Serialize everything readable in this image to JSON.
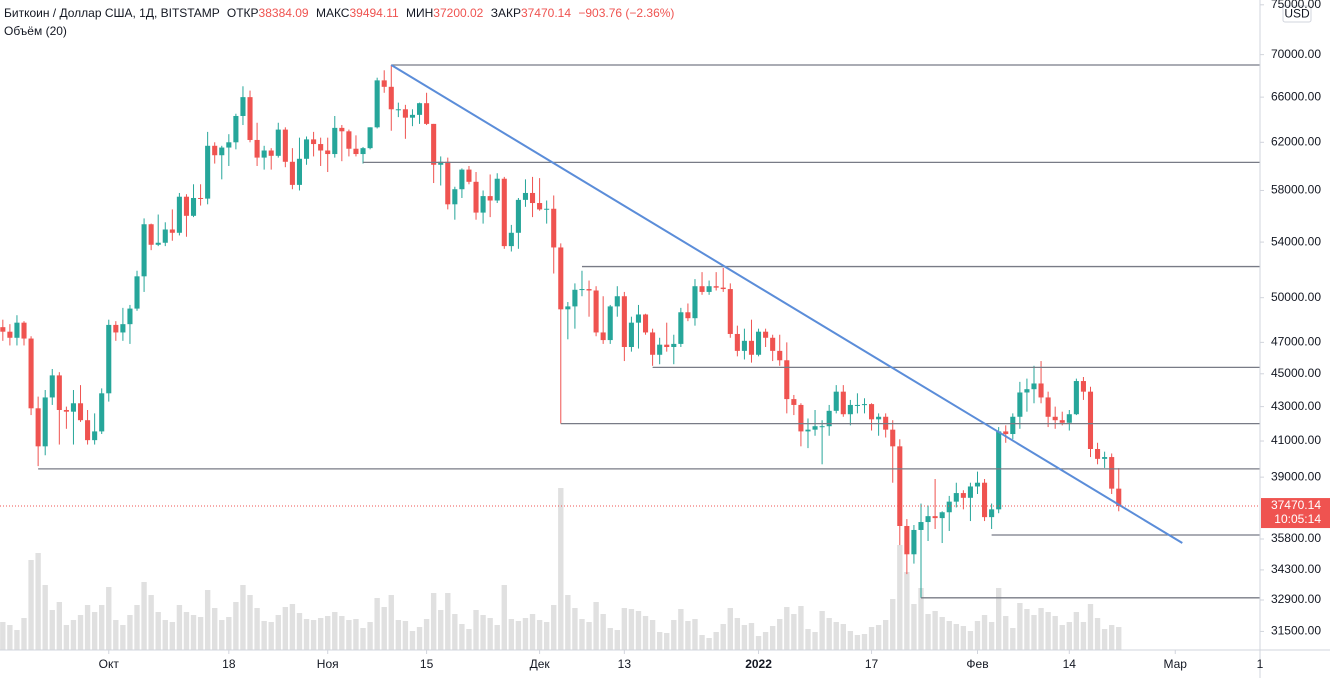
{
  "chart_data": {
    "type": "candlestick",
    "title": "Биткоин / Доллар США, 1Д, BITSTAMP",
    "ohlc_labels": [
      "ОТКР",
      "МАКС",
      "МИН",
      "ЗАКР"
    ],
    "change": "−903.76 (−2.36%)",
    "volume_label": "Объём (20)",
    "currency": "USD",
    "countdown": "10:05:14",
    "log_scale": true,
    "up_color": "#26a69a",
    "down_color": "#ef5350",
    "volume_color": "#e0e0e0",
    "drawing_color": "#787b86",
    "trend_color": "#5b8dd9",
    "xlim": [
      -0.4,
      178
    ],
    "ylim": [
      30700,
      75500
    ],
    "xticks": [
      {
        "value": 15,
        "label": "Окт"
      },
      {
        "value": 32,
        "label": "18"
      },
      {
        "value": 46,
        "label": "Ноя"
      },
      {
        "value": 60,
        "label": "15"
      },
      {
        "value": 76,
        "label": "Дек"
      },
      {
        "value": 88,
        "label": "13"
      },
      {
        "value": 107,
        "label": "2022"
      },
      {
        "value": 123,
        "label": "17"
      },
      {
        "value": 138,
        "label": "Фев"
      },
      {
        "value": 151,
        "label": "14"
      },
      {
        "value": 166,
        "label": "Мар"
      },
      {
        "value": 178,
        "label": "1"
      }
    ],
    "yticks": [
      {
        "value": 75000,
        "label": "75000.00"
      },
      {
        "value": 70000,
        "label": "70000.00"
      },
      {
        "value": 66000,
        "label": "66000.00"
      },
      {
        "value": 62000,
        "label": "62000.00"
      },
      {
        "value": 58000,
        "label": "58000.00"
      },
      {
        "value": 54000,
        "label": "54000.00"
      },
      {
        "value": 50000,
        "label": "50000.00"
      },
      {
        "value": 47000,
        "label": "47000.00"
      },
      {
        "value": 45000,
        "label": "45000.00"
      },
      {
        "value": 43000,
        "label": "43000.00"
      },
      {
        "value": 41000,
        "label": "41000.00"
      },
      {
        "value": 39000,
        "label": "39000.00"
      },
      {
        "value": 35800,
        "label": "35800.00"
      },
      {
        "value": 34300,
        "label": "34300.00"
      },
      {
        "value": 32900,
        "label": "32900.00"
      },
      {
        "value": 31500,
        "label": "31500.00"
      }
    ],
    "trendline": [
      {
        "index": 55,
        "price": 69000
      },
      {
        "index": 167,
        "price": 35600
      }
    ],
    "levels": [
      {
        "index": 55,
        "price": 69000
      },
      {
        "index": 51,
        "price": 60300
      },
      {
        "index": 82,
        "price": 52200
      },
      {
        "index": 92,
        "price": 45400
      },
      {
        "index": 79,
        "price": 42000
      },
      {
        "index": 5,
        "price": 39450
      },
      {
        "index": 140,
        "price": 36000
      },
      {
        "index": 130,
        "price": 33000
      }
    ],
    "open": [
      48000,
      47700,
      47300,
      48300,
      47250,
      42900,
      40700,
      43550,
      44900,
      42800,
      42700,
      43200,
      42200,
      41050,
      41550,
      43800,
      48150,
      47650,
      48200,
      49250,
      51500,
      55350,
      53800,
      53950,
      54950,
      54700,
      57500,
      56000,
      57400,
      57350,
      61700,
      60900,
      61550,
      62000,
      64300,
      66000,
      62200,
      60700,
      61300,
      60850,
      63100,
      60350,
      58450,
      60600,
      62250,
      61850,
      61300,
      61000,
      63250,
      62950,
      61450,
      61000,
      61500,
      63300,
      67550,
      66950,
      64900,
      64900,
      64150,
      64400,
      65450,
      63600,
      60100,
      60350,
      56900,
      58100,
      59700,
      58700,
      56250,
      57550,
      57200,
      58950,
      53700,
      54700,
      57250,
      57800,
      57000,
      56500,
      56550,
      53600,
      49200,
      49400,
      50550,
      50600,
      50500,
      47650,
      47150,
      49400,
      50100,
      46700,
      48300,
      48850,
      47650,
      46200,
      46850,
      46700,
      46900,
      49000,
      48600,
      50800,
      50400,
      50800,
      50700,
      50600,
      47550,
      46450,
      47100,
      46200,
      47700,
      47300,
      46450,
      45850,
      43450,
      43100,
      41550,
      41650,
      41850,
      41850,
      42750,
      43900,
      42550,
      43100,
      43100,
      43150,
      42250,
      42400,
      41650,
      40700,
      36450,
      35050,
      36250,
      36650,
      36950,
      36850,
      37150,
      37700,
      38150,
      37900,
      38500,
      38700,
      36900,
      37300,
      41550,
      41400,
      42400,
      43850,
      44050,
      44400,
      43550,
      42400,
      42200,
      42050,
      42550,
      44550,
      43900,
      40550,
      40000,
      40100,
      38384.09
    ],
    "high": [
      48500,
      48200,
      48800,
      48400,
      47400,
      43600,
      44000,
      45300,
      45100,
      43000,
      44000,
      44300,
      42800,
      42600,
      44100,
      48500,
      48400,
      49300,
      49500,
      51900,
      55800,
      55400,
      56100,
      55500,
      56500,
      57800,
      57700,
      58500,
      58500,
      62900,
      62000,
      61700,
      62700,
      64500,
      67000,
      66600,
      63700,
      61700,
      61500,
      63700,
      63300,
      61500,
      62400,
      62500,
      62900,
      62400,
      62400,
      64300,
      63500,
      63100,
      62600,
      61600,
      63300,
      67800,
      68500,
      69000,
      65500,
      65300,
      64900,
      65500,
      66400,
      63600,
      60800,
      60700,
      58300,
      59800,
      60000,
      59500,
      58000,
      59300,
      59400,
      59100,
      55300,
      57400,
      58900,
      59100,
      59000,
      57200,
      57600,
      53900,
      49700,
      51000,
      51900,
      51200,
      50800,
      50100,
      49500,
      50800,
      50400,
      48700,
      49500,
      48900,
      47900,
      47300,
      48300,
      47500,
      49300,
      49600,
      51300,
      51800,
      51200,
      51800,
      52100,
      51000,
      48100,
      47900,
      48500,
      47900,
      47900,
      47500,
      47500,
      47000,
      43700,
      43200,
      42300,
      42800,
      42200,
      43100,
      44300,
      44300,
      43400,
      43800,
      43500,
      43200,
      42600,
      42600,
      42200,
      41100,
      36800,
      36500,
      37600,
      37500,
      38900,
      37200,
      38000,
      38700,
      38300,
      38700,
      39300,
      38900,
      37600,
      41800,
      41900,
      42600,
      44500,
      44700,
      45500,
      45800,
      43900,
      43000,
      42700,
      42800,
      44700,
      44800,
      44200,
      40900,
      40400,
      40300,
      39494.11
    ],
    "low": [
      47100,
      46800,
      46800,
      46800,
      42500,
      39600,
      40200,
      43100,
      40800,
      41700,
      40800,
      42100,
      40800,
      40800,
      41400,
      43300,
      47100,
      47100,
      46900,
      49100,
      50400,
      53400,
      53700,
      53700,
      54100,
      54500,
      54400,
      55900,
      56800,
      56900,
      60200,
      58900,
      60000,
      61400,
      63500,
      62000,
      60000,
      59700,
      59700,
      60700,
      59900,
      58100,
      58000,
      60100,
      60800,
      60000,
      59500,
      60700,
      60400,
      60800,
      60800,
      60200,
      61400,
      63200,
      66400,
      63000,
      64200,
      62300,
      63400,
      63600,
      63500,
      58600,
      58400,
      56500,
      55700,
      57400,
      58500,
      55700,
      55400,
      55900,
      57000,
      53500,
      53300,
      53500,
      56700,
      55900,
      56400,
      55400,
      51700,
      42000,
      47200,
      47900,
      50100,
      48700,
      47400,
      46900,
      46900,
      48700,
      45800,
      46400,
      46600,
      47500,
      45500,
      45600,
      46400,
      45600,
      46700,
      48400,
      48100,
      50200,
      50200,
      50500,
      50400,
      47300,
      46100,
      45900,
      45700,
      46100,
      46700,
      45800,
      45500,
      42600,
      42500,
      40700,
      40600,
      41300,
      39700,
      41300,
      42600,
      42400,
      41900,
      42600,
      42600,
      41600,
      41300,
      41200,
      38700,
      35500,
      34100,
      34600,
      33000,
      35700,
      36300,
      35600,
      36200,
      37400,
      37300,
      36700,
      38100,
      36700,
      36300,
      37100,
      40900,
      41100,
      41700,
      42700,
      43200,
      43200,
      41800,
      41700,
      41900,
      41600,
      42500,
      43400,
      40100,
      39700,
      39500,
      38100,
      37200.02
    ],
    "close": [
      47700,
      47300,
      48300,
      47250,
      42900,
      40700,
      43550,
      44900,
      42800,
      42700,
      43200,
      42200,
      41050,
      41550,
      43800,
      48150,
      47650,
      48200,
      49250,
      51500,
      55350,
      53800,
      53950,
      54950,
      54700,
      57500,
      56000,
      57400,
      57350,
      61700,
      60900,
      61550,
      62000,
      64300,
      66000,
      62200,
      60700,
      61300,
      60850,
      63100,
      60350,
      58450,
      60600,
      62250,
      61850,
      61300,
      61000,
      63250,
      62950,
      61450,
      61000,
      61500,
      63300,
      67550,
      66950,
      64900,
      64900,
      64150,
      64400,
      65450,
      63600,
      60100,
      60350,
      56900,
      58100,
      59700,
      58700,
      56250,
      57550,
      57200,
      58950,
      53700,
      54700,
      57250,
      57800,
      57000,
      56500,
      56550,
      53600,
      49200,
      49400,
      50550,
      50600,
      50500,
      47650,
      47150,
      49400,
      50100,
      46700,
      48300,
      48850,
      47650,
      46200,
      46850,
      46700,
      46900,
      49000,
      48600,
      50800,
      50400,
      50800,
      50700,
      50600,
      47550,
      46450,
      47100,
      46200,
      47700,
      47300,
      46450,
      45850,
      43450,
      43100,
      41550,
      41650,
      41850,
      41850,
      42750,
      43900,
      42550,
      43100,
      43100,
      43150,
      42250,
      42400,
      41650,
      40700,
      36450,
      35050,
      36250,
      36650,
      36950,
      36850,
      37150,
      37700,
      38150,
      37900,
      38500,
      38700,
      36900,
      37300,
      41550,
      41400,
      42400,
      43850,
      44050,
      44400,
      43550,
      42400,
      42200,
      42050,
      42550,
      44550,
      43900,
      40550,
      40000,
      40100,
      38384.09,
      37470.14
    ],
    "volume": [
      2800,
      2500,
      2000,
      3200,
      9000,
      9700,
      6500,
      4000,
      4800,
      2500,
      3000,
      3500,
      4500,
      3800,
      4500,
      6300,
      3000,
      2500,
      3500,
      4500,
      6800,
      5500,
      3800,
      3000,
      2800,
      4500,
      3800,
      3500,
      3300,
      6000,
      4200,
      3000,
      3300,
      4800,
      6500,
      5500,
      4200,
      2900,
      2800,
      3500,
      4300,
      4600,
      3700,
      3100,
      3000,
      3200,
      3400,
      3800,
      3400,
      3000,
      3100,
      2200,
      2800,
      5200,
      4300,
      5500,
      3000,
      2900,
      1900,
      2300,
      3100,
      5700,
      4000,
      5700,
      3600,
      2600,
      2100,
      4000,
      3500,
      3200,
      2500,
      6500,
      3100,
      2900,
      3200,
      3600,
      3000,
      2800,
      4500,
      16200,
      5500,
      4200,
      3100,
      2800,
      4800,
      3600,
      2200,
      2000,
      4200,
      4100,
      3900,
      3400,
      3000,
      1800,
      1700,
      3000,
      4100,
      2900,
      3100,
      1500,
      1200,
      1800,
      2600,
      4200,
      3200,
      2500,
      2700,
      1400,
      1800,
      2400,
      3100,
      4300,
      3600,
      4400,
      2100,
      1800,
      3900,
      3200,
      2800,
      2600,
      1900,
      1500,
      1600,
      2300,
      2500,
      3000,
      5100,
      10500,
      7800,
      4600,
      6200,
      3600,
      3900,
      3300,
      2900,
      2600,
      2400,
      1900,
      2900,
      3500,
      2800,
      6200,
      3400,
      2200,
      4700,
      4100,
      3500,
      4200,
      3800,
      3400,
      2500,
      2800,
      3800,
      2800,
      4600,
      3200,
      2100,
      2500,
      2300
    ]
  }
}
